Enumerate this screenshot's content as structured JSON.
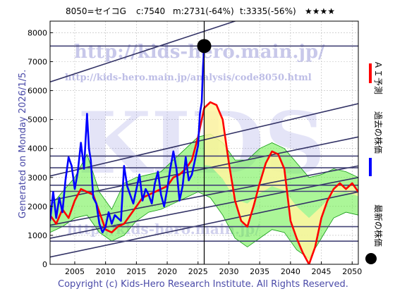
{
  "header": {
    "code": "8050=セイコG",
    "current": "c:7540",
    "min": "m:2731(-64%)",
    "target": "t:3335(-56%)",
    "stars": "★★★★"
  },
  "side_label": "Generated on Monday 2026/1/5.",
  "footer": "Copyright (c) Kids-Hero Research Institute. All Rights Reserved.",
  "watermark": {
    "big": "KIDS",
    "url": "http://kids-hero.main.jp/",
    "url2": "http://kids-hero.main.jp/analysis/code8050.html",
    "url3": "http://kids-hero.main.jp/"
  },
  "legend": [
    {
      "label": "ＡＩ予測",
      "color": "#ff0000"
    },
    {
      "label": "過去の株価",
      "color": "#0000ff"
    },
    {
      "label": "最新の株価",
      "color": "#000000"
    }
  ],
  "colors": {
    "ai": "#ff0000",
    "past": "#0000ff",
    "latest": "#000000",
    "band_fill": "#66ee44",
    "band_line": "#119911",
    "ai_fill": "#fff6a0",
    "channel": "#333366",
    "hline": "#444477"
  },
  "chart_data": {
    "type": "line",
    "xlim": [
      2001,
      2051
    ],
    "ylim": [
      0,
      8400
    ],
    "x_ticks": [
      2005,
      2010,
      2015,
      2020,
      2025,
      2030,
      2035,
      2040,
      2045,
      2050
    ],
    "y_ticks": [
      0,
      1000,
      2000,
      3000,
      4000,
      5000,
      6000,
      7000,
      8000
    ],
    "grid": true,
    "latest": {
      "x": 2026.0,
      "y": 7540
    },
    "hlines": [
      7540,
      3740,
      3335,
      2731,
      2520,
      1300,
      800
    ],
    "channel_lines": [
      {
        "x1": 2001,
        "y1": 6300,
        "x2": 2051,
        "y2": 9800
      },
      {
        "x1": 2001,
        "y1": 3050,
        "x2": 2051,
        "y2": 5550
      },
      {
        "x1": 2001,
        "y1": 2200,
        "x2": 2051,
        "y2": 4400
      },
      {
        "x1": 2001,
        "y1": 1350,
        "x2": 2051,
        "y2": 3400
      },
      {
        "x1": 2001,
        "y1": 900,
        "x2": 2051,
        "y2": 3000
      },
      {
        "x1": 2001,
        "y1": 250,
        "x2": 2051,
        "y2": 2500
      }
    ],
    "series": [
      {
        "role": "past",
        "x": [
          2001.0,
          2001.5,
          2002.0,
          2002.5,
          2003.0,
          2003.5,
          2004.0,
          2004.5,
          2005.0,
          2005.5,
          2006.0,
          2006.5,
          2007.0,
          2007.3,
          2007.6,
          2008.0,
          2008.5,
          2009.0,
          2009.5,
          2010.0,
          2010.5,
          2011.0,
          2011.5,
          2012.0,
          2012.5,
          2013.0,
          2013.5,
          2014.0,
          2014.5,
          2015.0,
          2015.5,
          2016.0,
          2016.5,
          2017.0,
          2017.5,
          2018.0,
          2018.5,
          2019.0,
          2019.5,
          2020.0,
          2020.5,
          2021.0,
          2021.5,
          2022.0,
          2022.5,
          2023.0,
          2023.5,
          2024.0,
          2024.5,
          2025.0,
          2025.3,
          2025.6,
          2025.8,
          2026.0
        ],
        "y": [
          1500,
          2500,
          1600,
          2300,
          1800,
          2900,
          3700,
          3400,
          2600,
          3200,
          4200,
          3300,
          5200,
          4000,
          3600,
          2300,
          2100,
          1400,
          1100,
          1300,
          1800,
          1400,
          1700,
          1600,
          1500,
          3400,
          2700,
          2400,
          2100,
          2600,
          3100,
          2200,
          2600,
          2400,
          2100,
          2800,
          3200,
          2400,
          2000,
          2600,
          3300,
          3900,
          3300,
          2200,
          2700,
          3700,
          2900,
          3100,
          3600,
          4100,
          5200,
          5600,
          6800,
          7540
        ]
      },
      {
        "role": "ai",
        "x": [
          2001.0,
          2002.0,
          2003.0,
          2004.0,
          2005.0,
          2006.0,
          2007.0,
          2008.0,
          2009.0,
          2010.0,
          2011.0,
          2012.0,
          2013.0,
          2014.0,
          2015.0,
          2016.0,
          2017.0,
          2018.0,
          2019.0,
          2020.0,
          2021.0,
          2022.0,
          2023.0,
          2024.0,
          2025.0,
          2026.0,
          2027.0,
          2028.0,
          2029.0,
          2030.0,
          2031.0,
          2032.0,
          2033.0,
          2034.0,
          2035.0,
          2036.0,
          2037.0,
          2038.0,
          2039.0,
          2040.0,
          2041.0,
          2042.0,
          2043.0,
          2044.0,
          2045.0,
          2046.0,
          2047.0,
          2048.0,
          2049.0,
          2050.0,
          2051.0
        ],
        "y": [
          1700,
          1400,
          1900,
          1600,
          2200,
          2600,
          2500,
          2400,
          1800,
          1200,
          1100,
          1300,
          1400,
          1700,
          2000,
          2300,
          2400,
          2500,
          2600,
          2700,
          3000,
          3100,
          3300,
          3600,
          4400,
          5400,
          5600,
          5500,
          5000,
          3500,
          2200,
          1500,
          1300,
          2000,
          2800,
          3500,
          3900,
          3800,
          3300,
          1500,
          900,
          400,
          0,
          600,
          1600,
          2200,
          2600,
          2800,
          2600,
          2800,
          2500
        ]
      },
      {
        "role": "band",
        "x": [
          2001,
          2003,
          2005,
          2007,
          2009,
          2011,
          2013,
          2015,
          2017,
          2019,
          2021,
          2023,
          2025,
          2027,
          2029,
          2031,
          2033,
          2035,
          2037,
          2039,
          2041,
          2043,
          2045,
          2047,
          2049,
          2051
        ],
        "upper": [
          2000,
          2500,
          3000,
          3800,
          2500,
          1900,
          2800,
          3000,
          3100,
          3200,
          3600,
          4000,
          4400,
          4500,
          4200,
          3600,
          3600,
          4000,
          4200,
          4000,
          3500,
          3000,
          3100,
          3300,
          3200,
          3000
        ],
        "lower": [
          1100,
          1300,
          1600,
          1700,
          1100,
          800,
          1000,
          1500,
          1800,
          1900,
          2100,
          2300,
          2500,
          2300,
          1700,
          900,
          600,
          900,
          1200,
          1100,
          500,
          200,
          900,
          1600,
          1800,
          1700
        ]
      }
    ]
  }
}
